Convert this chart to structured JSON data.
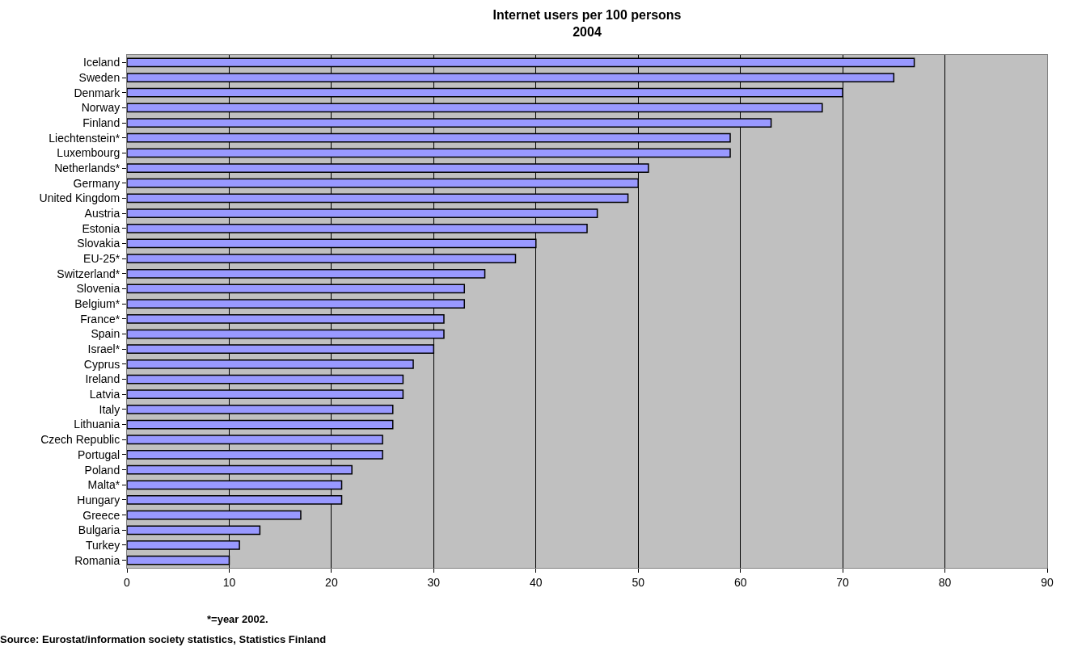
{
  "chart_data": {
    "type": "bar",
    "orientation": "horizontal",
    "title": "Internet users per 100 persons\n2004",
    "categories": [
      "Iceland",
      "Sweden",
      "Denmark",
      "Norway",
      "Finland",
      "Liechtenstein*",
      "Luxembourg",
      "Netherlands*",
      "Germany",
      "United Kingdom",
      "Austria",
      "Estonia",
      "Slovakia",
      "EU-25*",
      "Switzerland*",
      "Slovenia",
      "Belgium*",
      "France*",
      "Spain",
      "Israel*",
      "Cyprus",
      "Ireland",
      "Latvia",
      "Italy",
      "Lithuania",
      "Czech Republic",
      "Portugal",
      "Poland",
      "Malta*",
      "Hungary",
      "Greece",
      "Bulgaria",
      "Turkey",
      "Romania"
    ],
    "values": [
      77,
      75,
      70,
      68,
      63,
      59,
      59,
      51,
      50,
      49,
      46,
      45,
      40,
      38,
      35,
      33,
      33,
      31,
      31,
      30,
      28,
      27,
      27,
      26,
      26,
      25,
      25,
      22,
      21,
      21,
      17,
      13,
      11,
      10
    ],
    "color": "#9999ff",
    "xlim": [
      0,
      90
    ],
    "xticks": [
      0,
      10,
      20,
      30,
      40,
      50,
      60,
      70,
      80,
      90
    ],
    "grid": "x",
    "legend": false,
    "annotations": [
      "*=year 2002.",
      "Source: Eurostat/information society statistics, Statistics Finland"
    ]
  }
}
